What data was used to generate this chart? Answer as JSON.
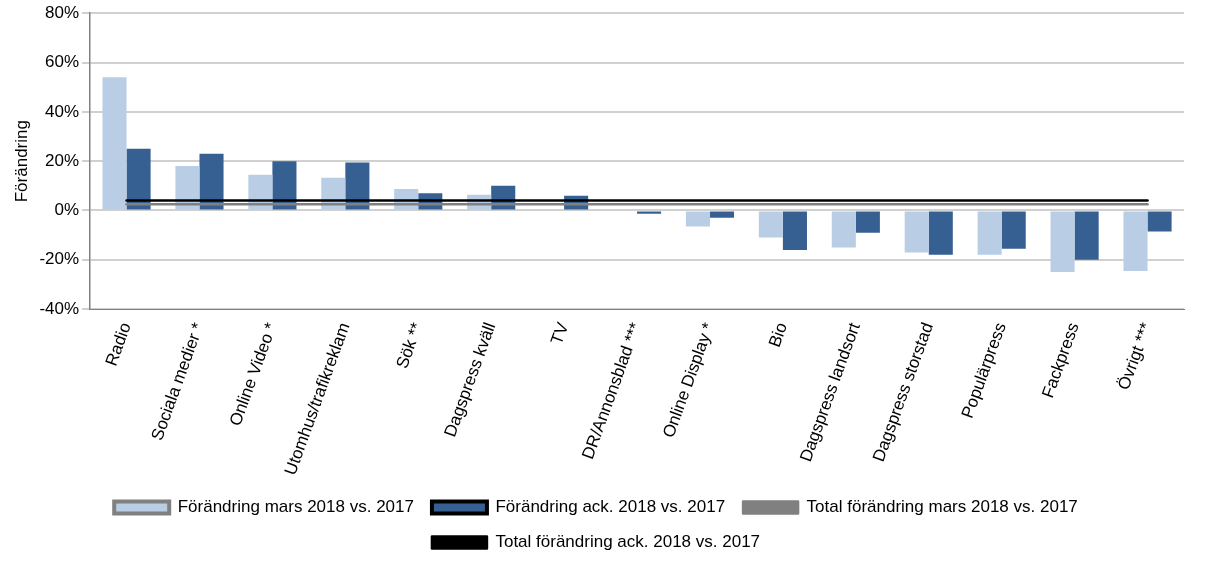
{
  "chart_data": {
    "type": "bar",
    "ylabel": "Förändring",
    "categories": [
      "Radio",
      "Sociala medier *",
      "Online Video *",
      "Utomhus/trafikreklam",
      "Sök **",
      "Dagspress kväll",
      "TV",
      "DR/Annonsblad ***",
      "Online Display *",
      "Bio",
      "Dagspress landsort",
      "Dagspress storstad",
      "Populärpress",
      "Fackpress",
      "Övrigt ***"
    ],
    "series": [
      {
        "name": "Förändring mars 2018 vs. 2017",
        "color": "#b9cde5",
        "values": [
          54,
          18,
          14.5,
          13.3,
          8.7,
          6.4,
          null,
          0,
          -6.5,
          -11,
          -15,
          -17,
          -18,
          -25,
          -24.5
        ]
      },
      {
        "name": "Förändring ack. 2018 vs. 2017",
        "color": "#366092",
        "values": [
          25,
          23,
          20,
          19.5,
          7,
          10,
          6,
          -1.3,
          -3,
          -16,
          -9,
          -18,
          -15.5,
          -20,
          -8.5
        ]
      },
      {
        "name": "Total förändring mars 2018 vs. 2017",
        "type": "line",
        "color": "#808080",
        "values": [
          2.5,
          2.5,
          2.5,
          2.5,
          2.5,
          2.5,
          2.5,
          2.5,
          2.5,
          2.5,
          2.5,
          2.5,
          2.5,
          2.5,
          2.5
        ]
      },
      {
        "name": "Total förändring ack. 2018 vs. 2017",
        "type": "line",
        "color": "#000000",
        "values": [
          4,
          4,
          4,
          4,
          4,
          4,
          4,
          4,
          4,
          4,
          4,
          4,
          4,
          4,
          4
        ]
      }
    ],
    "ylim": [
      -40,
      80
    ],
    "yticks": [
      {
        "value": -40,
        "label": "-40%"
      },
      {
        "value": -20,
        "label": "-20%"
      },
      {
        "value": 0,
        "label": "0%"
      },
      {
        "value": 20,
        "label": "20%"
      },
      {
        "value": 40,
        "label": "40%"
      },
      {
        "value": 60,
        "label": "60%"
      },
      {
        "value": 80,
        "label": "80%"
      }
    ],
    "grid": "y",
    "legend": "bottom",
    "marker": "none"
  }
}
